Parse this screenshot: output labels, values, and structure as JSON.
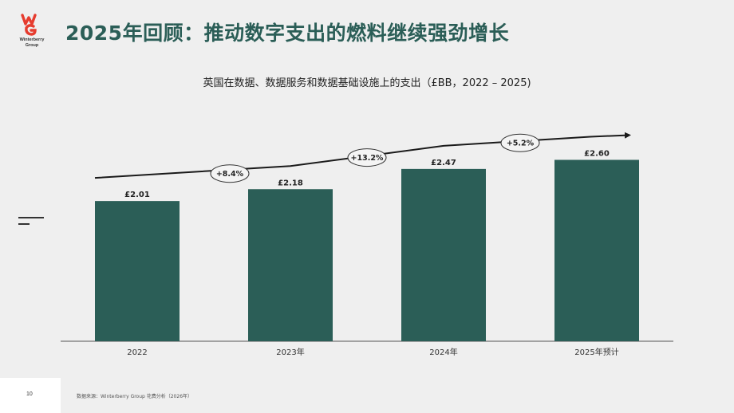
{
  "brand": {
    "logo_text_line1": "Winterberry",
    "logo_text_line2": "Group",
    "logo_color": "#e63c2f"
  },
  "page_title": "2025年回顾：推动数字支出的燃料继续强劲增长",
  "colors": {
    "bar": "#2b5e57",
    "title": "#2b5e57",
    "arrow": "#1a1a1a",
    "background": "#efefef"
  },
  "chart_data": {
    "type": "bar",
    "title": "英国在数据、数据服务和数据基础设施上的支出（£BB，2022 – 2025)",
    "categories": [
      "2022",
      "2023年",
      "2024年",
      "2025年预计"
    ],
    "values": [
      2.01,
      2.18,
      2.47,
      2.6
    ],
    "value_labels": [
      "£2.01",
      "£2.18",
      "£2.47",
      "£2.60"
    ],
    "growth_labels": [
      "+8.4%",
      "+13.2%",
      "+5.2%"
    ],
    "ylim": [
      0,
      2.8
    ],
    "grid": false,
    "legend": "none"
  },
  "footer": {
    "page_number": "10",
    "source": "数据来源：Winterberry Group 花费分析（2026年）"
  }
}
